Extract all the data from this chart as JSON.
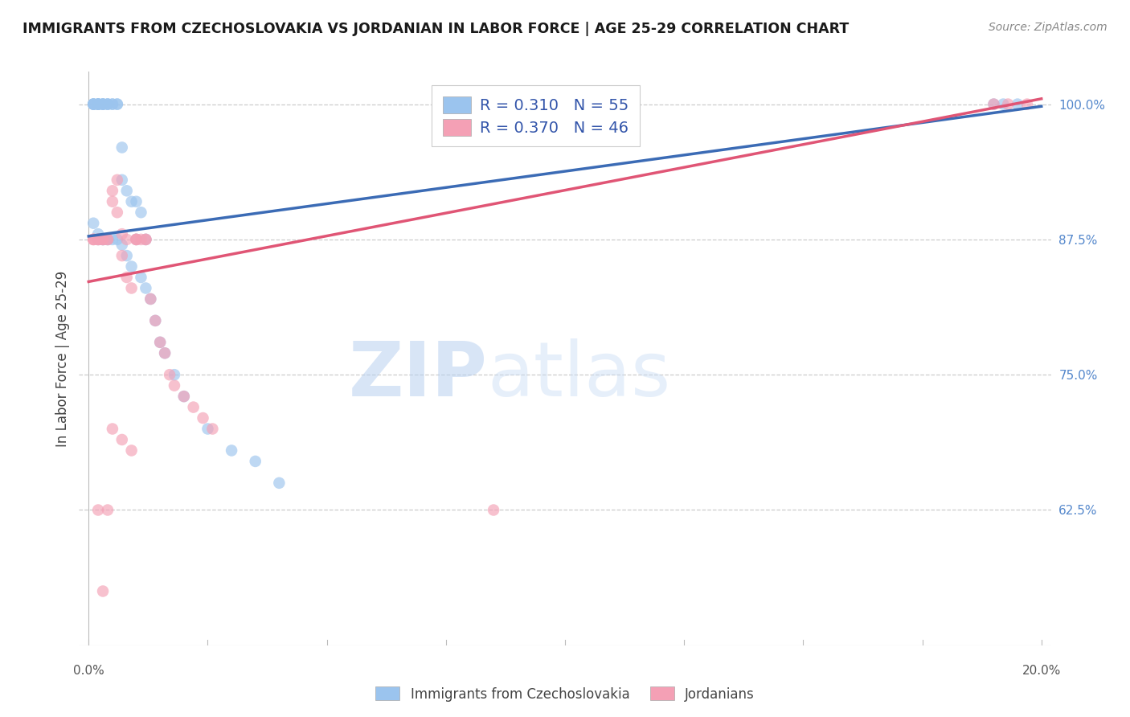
{
  "title": "IMMIGRANTS FROM CZECHOSLOVAKIA VS JORDANIAN IN LABOR FORCE | AGE 25-29 CORRELATION CHART",
  "source": "Source: ZipAtlas.com",
  "ylabel": "In Labor Force | Age 25-29",
  "legend_label1": "Immigrants from Czechoslovakia",
  "legend_label2": "Jordanians",
  "R1": 0.31,
  "N1": 55,
  "R2": 0.37,
  "N2": 46,
  "blue_color": "#9BC4EE",
  "pink_color": "#F4A0B5",
  "blue_line_color": "#3B6BB5",
  "pink_line_color": "#E05575",
  "watermark_zip": "ZIP",
  "watermark_atlas": "atlas",
  "right_ytick_labels": [
    "62.5%",
    "75.0%",
    "87.5%",
    "100.0%"
  ],
  "right_ytick_values": [
    0.625,
    0.75,
    0.875,
    1.0
  ],
  "xlim_min": 0.0,
  "xlim_max": 0.2,
  "ylim_min": 0.5,
  "ylim_max": 1.03,
  "blue_line_x": [
    0.0,
    0.2
  ],
  "blue_line_y": [
    0.878,
    0.998
  ],
  "pink_line_x": [
    0.0,
    0.2
  ],
  "pink_line_y": [
    0.836,
    1.005
  ],
  "blue_x": [
    0.001,
    0.001,
    0.001,
    0.001,
    0.002,
    0.002,
    0.002,
    0.002,
    0.002,
    0.003,
    0.003,
    0.003,
    0.003,
    0.004,
    0.004,
    0.004,
    0.005,
    0.005,
    0.006,
    0.006,
    0.007,
    0.007,
    0.008,
    0.009,
    0.01,
    0.011,
    0.012,
    0.001,
    0.002,
    0.003,
    0.004,
    0.005,
    0.006,
    0.007,
    0.008,
    0.009,
    0.01,
    0.011,
    0.012,
    0.013,
    0.014,
    0.015,
    0.016,
    0.018,
    0.02,
    0.025,
    0.03,
    0.035,
    0.04,
    0.002,
    0.003,
    0.004,
    0.19,
    0.192,
    0.195
  ],
  "blue_y": [
    1.0,
    1.0,
    1.0,
    1.0,
    1.0,
    1.0,
    1.0,
    1.0,
    1.0,
    1.0,
    1.0,
    1.0,
    1.0,
    1.0,
    1.0,
    1.0,
    1.0,
    1.0,
    1.0,
    1.0,
    0.96,
    0.93,
    0.92,
    0.91,
    0.91,
    0.9,
    0.875,
    0.89,
    0.88,
    0.875,
    0.875,
    0.875,
    0.875,
    0.87,
    0.86,
    0.85,
    0.875,
    0.84,
    0.83,
    0.82,
    0.8,
    0.78,
    0.77,
    0.75,
    0.73,
    0.7,
    0.68,
    0.67,
    0.65,
    0.875,
    0.875,
    0.875,
    1.0,
    1.0,
    1.0
  ],
  "pink_x": [
    0.001,
    0.001,
    0.001,
    0.002,
    0.002,
    0.002,
    0.003,
    0.003,
    0.003,
    0.004,
    0.004,
    0.005,
    0.005,
    0.006,
    0.006,
    0.007,
    0.007,
    0.008,
    0.008,
    0.009,
    0.01,
    0.01,
    0.011,
    0.012,
    0.013,
    0.014,
    0.015,
    0.016,
    0.017,
    0.018,
    0.02,
    0.022,
    0.024,
    0.026,
    0.005,
    0.007,
    0.009,
    0.01,
    0.012,
    0.085,
    0.19,
    0.193,
    0.197,
    0.002,
    0.003,
    0.004
  ],
  "pink_y": [
    0.875,
    0.875,
    0.875,
    0.875,
    0.875,
    0.875,
    0.875,
    0.875,
    0.875,
    0.875,
    0.875,
    0.92,
    0.91,
    0.93,
    0.9,
    0.88,
    0.86,
    0.875,
    0.84,
    0.83,
    0.875,
    0.875,
    0.875,
    0.875,
    0.82,
    0.8,
    0.78,
    0.77,
    0.75,
    0.74,
    0.73,
    0.72,
    0.71,
    0.7,
    0.7,
    0.69,
    0.68,
    0.875,
    0.875,
    0.625,
    1.0,
    1.0,
    1.0,
    0.625,
    0.55,
    0.625
  ]
}
